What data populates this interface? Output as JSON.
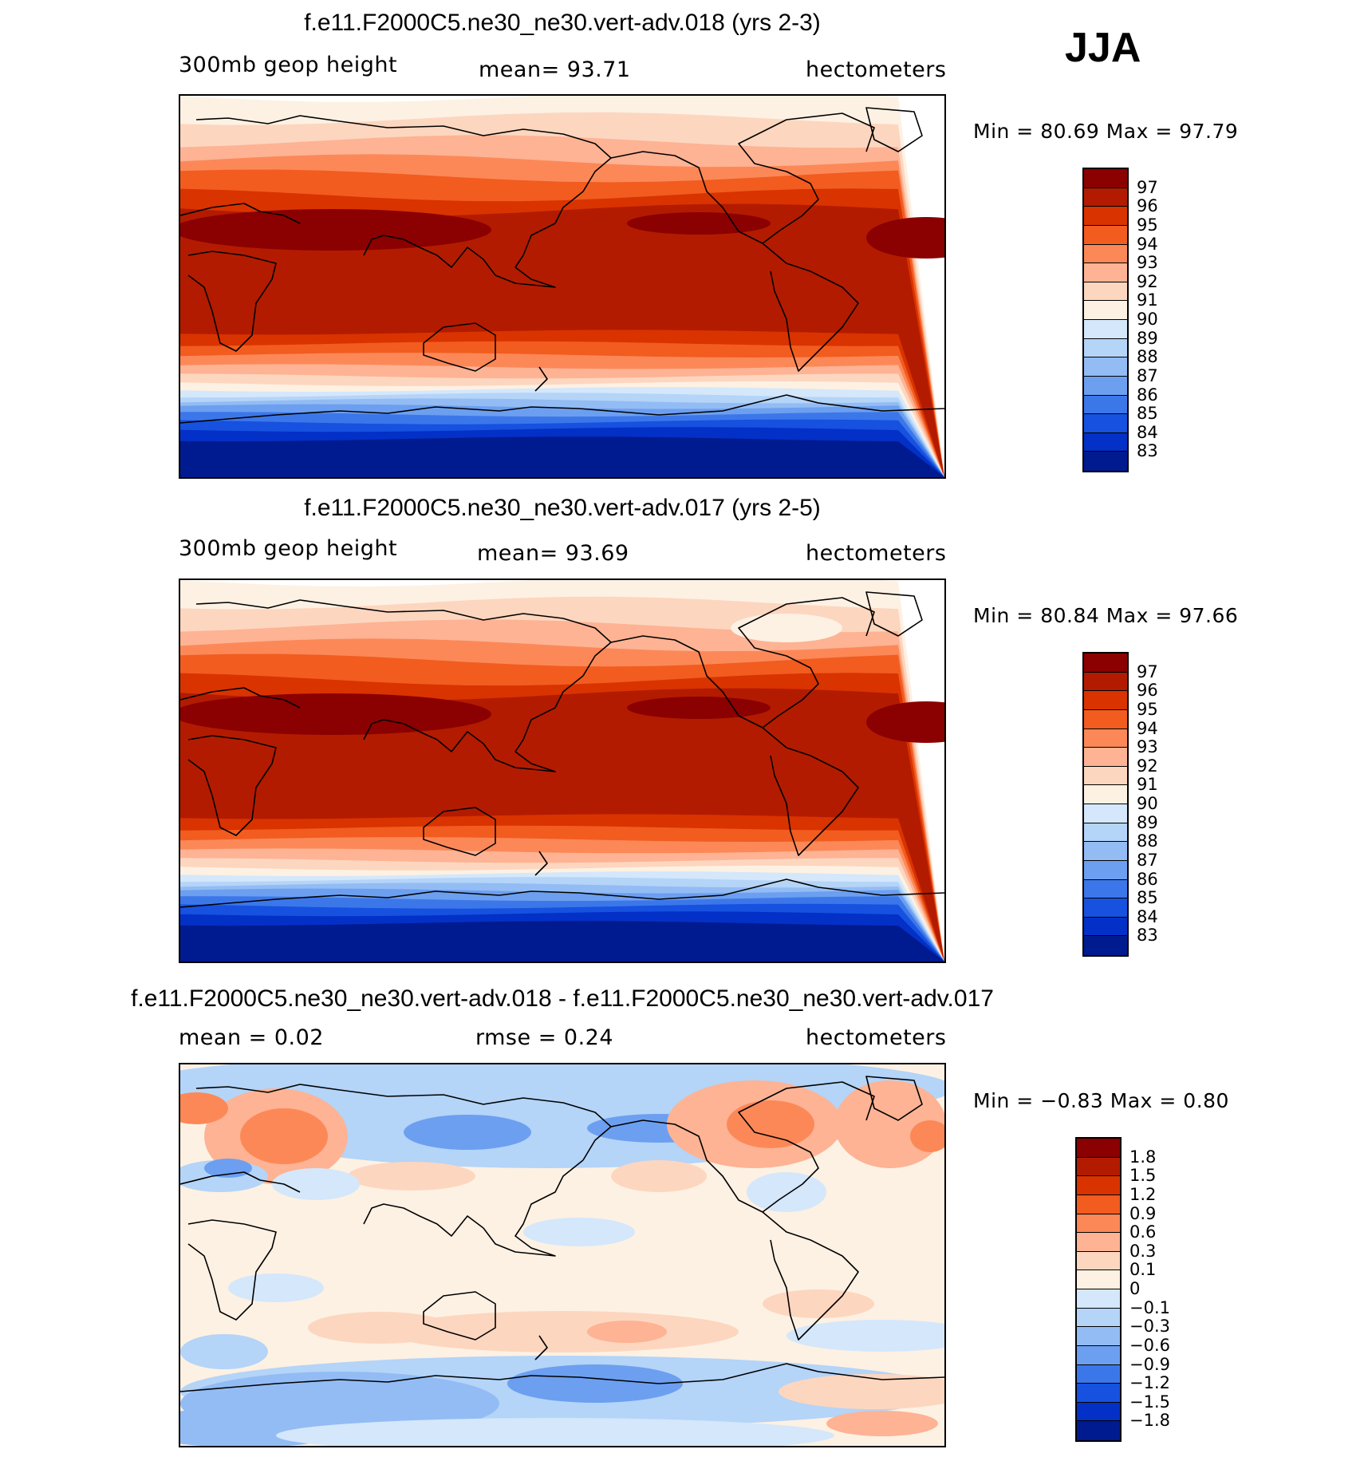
{
  "season": "JJA",
  "panels": [
    {
      "title": "f.e11.F2000C5.ne30_ne30.vert-adv.018 (yrs 2-3)",
      "left_label": "300mb  geop  height",
      "center_label": "mean=   93.71",
      "units": "hectometers",
      "minmax": "Min  =   80.69  Max  =   97.79",
      "type": "abs"
    },
    {
      "title": "f.e11.F2000C5.ne30_ne30.vert-adv.017 (yrs 2-5)",
      "left_label": "300mb  geop  height",
      "center_label": "mean=   93.69",
      "units": "hectometers",
      "minmax": "Min  =   80.84  Max  =   97.66",
      "type": "abs"
    },
    {
      "title": "f.e11.F2000C5.ne30_ne30.vert-adv.018 - f.e11.F2000C5.ne30_ne30.vert-adv.017",
      "left_label": "mean =     0.02",
      "center_label": "rmse =     0.24",
      "units": "hectometers",
      "minmax": "Min  =   −0.83  Max  =     0.80",
      "type": "diff"
    }
  ],
  "colorbar_abs": {
    "labels": [
      "97",
      "96",
      "95",
      "94",
      "93",
      "92",
      "91",
      "90",
      "89",
      "88",
      "87",
      "86",
      "85",
      "84",
      "83"
    ],
    "colors": [
      "#8b0000",
      "#b31b00",
      "#d93300",
      "#f25c1f",
      "#fc8858",
      "#fdb394",
      "#fdd6bf",
      "#fdf1e3",
      "#d4e7fb",
      "#b4d4f8",
      "#93bcf4",
      "#6c9ff0",
      "#3c77ea",
      "#1651e0",
      "#0330c6",
      "#001a8f"
    ]
  },
  "colorbar_diff": {
    "labels": [
      "1.8",
      "1.5",
      "1.2",
      "0.9",
      "0.6",
      "0.3",
      "0.1",
      "0",
      "−0.1",
      "−0.3",
      "−0.6",
      "−0.9",
      "−1.2",
      "−1.5",
      "−1.8"
    ],
    "colors": [
      "#8b0000",
      "#b31b00",
      "#d93300",
      "#f25c1f",
      "#fc8858",
      "#fdb394",
      "#fdd6bf",
      "#fdf1e3",
      "#d4e7fb",
      "#b4d4f8",
      "#93bcf4",
      "#6c9ff0",
      "#3c77ea",
      "#1651e0",
      "#0330c6",
      "#001a8f"
    ]
  }
}
